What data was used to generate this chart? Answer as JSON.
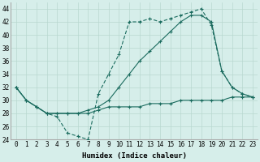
{
  "xlabel": "Humidex (Indice chaleur)",
  "bg_color": "#d6eeea",
  "line_color": "#1a6b5e",
  "xlim": [
    -0.5,
    23.5
  ],
  "ylim": [
    24,
    45
  ],
  "yticks": [
    24,
    26,
    28,
    30,
    32,
    34,
    36,
    38,
    40,
    42,
    44
  ],
  "xticks": [
    0,
    1,
    2,
    3,
    4,
    5,
    6,
    7,
    8,
    9,
    10,
    11,
    12,
    13,
    14,
    15,
    16,
    17,
    18,
    19,
    20,
    21,
    22,
    23
  ],
  "series1_x": [
    0,
    1,
    2,
    3,
    4,
    5,
    6,
    7,
    8,
    9,
    10,
    11,
    12,
    13,
    14,
    15,
    16,
    17,
    18,
    19,
    20,
    21,
    22,
    23
  ],
  "series1_y": [
    32,
    30,
    29,
    28,
    27.5,
    25,
    24.5,
    24,
    31,
    34,
    37,
    42,
    42,
    42.5,
    42,
    42.5,
    43,
    43.5,
    44,
    41.5,
    34.5,
    32,
    31,
    30.5
  ],
  "series2_x": [
    0,
    1,
    2,
    3,
    4,
    5,
    6,
    7,
    8,
    9,
    10,
    11,
    12,
    13,
    14,
    15,
    16,
    17,
    18,
    19,
    20,
    21,
    22,
    23
  ],
  "series2_y": [
    32,
    30,
    29,
    28,
    28,
    28,
    28,
    28,
    28.5,
    29,
    29,
    29,
    29,
    29.5,
    29.5,
    29.5,
    30,
    30,
    30,
    30,
    30,
    30.5,
    30.5,
    30.5
  ],
  "series3_x": [
    0,
    1,
    2,
    3,
    4,
    5,
    6,
    7,
    8,
    9,
    10,
    11,
    12,
    13,
    14,
    15,
    16,
    17,
    18,
    19,
    20,
    21,
    22,
    23
  ],
  "series3_y": [
    32,
    30,
    29,
    28,
    28,
    28,
    28,
    28.5,
    29,
    30,
    32,
    34,
    36,
    37.5,
    39,
    40.5,
    42,
    43,
    43,
    42,
    34.5,
    32,
    31,
    30.5
  ],
  "grid_color": "#b8d8d0",
  "font_size": 6.5
}
